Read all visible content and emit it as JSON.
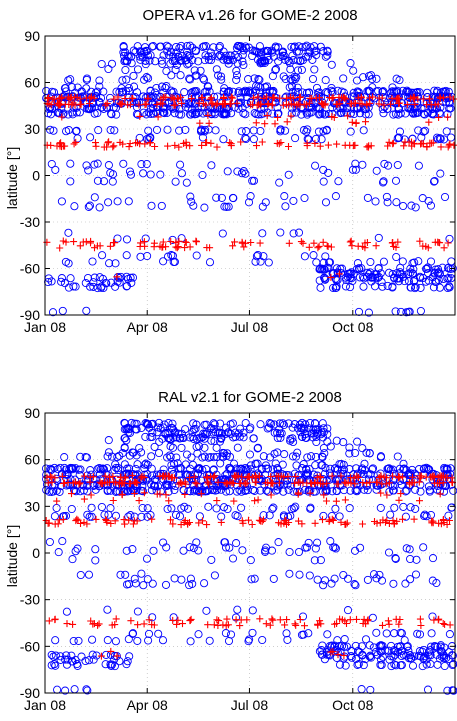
{
  "figure": {
    "background": "#ffffff",
    "circle_color": "#0000ff",
    "cross_color": "#ff0000"
  },
  "chart_data": [
    {
      "type": "scatter",
      "title": "OPERA v1.26 for GOME-2 2008",
      "xlabel": "",
      "ylabel": "latitude [°]",
      "xlim": [
        "2008-01-01",
        "2008-12-31"
      ],
      "ylim": [
        -90,
        90
      ],
      "x_tick_labels": [
        "Jan 08",
        "Apr 08",
        "Jul 08",
        "Oct 08"
      ],
      "x_ticks": [
        "2008-01-01",
        "2008-04-01",
        "2008-07-01",
        "2008-10-01"
      ],
      "y_ticks": [
        90,
        60,
        30,
        0,
        -30,
        -60,
        -90
      ],
      "grid": true,
      "series": [
        {
          "marker": "circle",
          "color": "#0000ff",
          "bands": [
            {
              "lat_range": [
                74,
                83
              ],
              "dates": [
                "2008-03-10",
                "2008-09-10"
              ],
              "density": 0.85
            },
            {
              "lat_range": [
                64,
                72
              ],
              "dates": [
                "2008-02-20",
                "2008-10-20"
              ],
              "density": 0.45
            },
            {
              "lat_range": [
                57,
                62
              ],
              "dates": [
                "2008-01-15",
                "2008-11-20"
              ],
              "density": 0.55
            },
            {
              "lat_range": [
                40,
                54
              ],
              "dates": [
                "2008-01-01",
                "2008-12-31"
              ],
              "density": 1.0
            },
            {
              "lat_range": [
                24,
                29
              ],
              "dates": [
                "2008-01-01",
                "2008-12-31"
              ],
              "density": 0.55
            },
            {
              "lat_range": [
                3,
                7
              ],
              "dates": [
                "2008-01-01",
                "2008-12-31"
              ],
              "density": 0.3
            },
            {
              "lat_range": [
                -4,
                1
              ],
              "dates": [
                "2008-01-01",
                "2008-12-31"
              ],
              "density": 0.3
            },
            {
              "lat_range": [
                -20,
                -14
              ],
              "dates": [
                "2008-01-15",
                "2008-12-31"
              ],
              "density": 0.35
            },
            {
              "lat_range": [
                -41,
                -37
              ],
              "dates": [
                "2008-01-20",
                "2008-12-31"
              ],
              "density": 0.22
            },
            {
              "lat_range": [
                -56,
                -52
              ],
              "dates": [
                "2008-01-01",
                "2008-12-31"
              ],
              "density": 0.4
            },
            {
              "lat_range": [
                -66,
                -60
              ],
              "dates": [
                "2008-09-01",
                "2008-12-31"
              ],
              "density": 0.9
            },
            {
              "lat_range": [
                -72,
                -66
              ],
              "dates": [
                "2008-01-01",
                "2008-03-20"
              ],
              "density": 0.7
            },
            {
              "lat_range": [
                -72,
                -68
              ],
              "dates": [
                "2008-09-01",
                "2008-12-31"
              ],
              "density": 0.7
            },
            {
              "lat_range": [
                -90,
                -88
              ],
              "dates": [
                "2008-01-05",
                "2008-02-10"
              ],
              "density": 0.4
            },
            {
              "lat_range": [
                -90,
                -88
              ],
              "dates": [
                "2008-10-05",
                "2008-12-31"
              ],
              "density": 0.4
            }
          ]
        },
        {
          "marker": "plus",
          "color": "#ff0000",
          "bands": [
            {
              "lat_range": [
                46,
                50
              ],
              "dates": [
                "2008-01-01",
                "2008-12-31"
              ],
              "density": 0.9
            },
            {
              "lat_range": [
                34,
                38
              ],
              "dates": [
                "2008-01-01",
                "2008-12-31"
              ],
              "density": 0.3
            },
            {
              "lat_range": [
                19,
                21
              ],
              "dates": [
                "2008-01-01",
                "2008-12-31"
              ],
              "density": 0.6
            },
            {
              "lat_range": [
                -46,
                -43
              ],
              "dates": [
                "2008-01-01",
                "2008-12-31"
              ],
              "density": 0.55
            },
            {
              "lat_range": [
                -66,
                -63
              ],
              "dates": [
                "2008-02-20",
                "2008-03-15"
              ],
              "density": 0.3
            },
            {
              "lat_range": [
                -66,
                -63
              ],
              "dates": [
                "2008-09-10",
                "2008-10-15"
              ],
              "density": 0.4
            }
          ]
        }
      ]
    },
    {
      "type": "scatter",
      "title": "RAL v2.1 for GOME-2 2008",
      "xlabel": "",
      "ylabel": "latitude [°]",
      "xlim": [
        "2008-01-01",
        "2008-12-31"
      ],
      "ylim": [
        -90,
        90
      ],
      "x_tick_labels": [
        "Jan 08",
        "Apr 08",
        "Jul 08",
        "Oct 08"
      ],
      "x_ticks": [
        "2008-01-01",
        "2008-04-01",
        "2008-07-01",
        "2008-10-01"
      ],
      "y_ticks": [
        90,
        60,
        30,
        0,
        -30,
        -60,
        -90
      ],
      "grid": true,
      "series": [
        {
          "marker": "circle",
          "color": "#0000ff",
          "bands": [
            {
              "lat_range": [
                74,
                83
              ],
              "dates": [
                "2008-03-10",
                "2008-09-10"
              ],
              "density": 0.85
            },
            {
              "lat_range": [
                64,
                72
              ],
              "dates": [
                "2008-02-20",
                "2008-10-20"
              ],
              "density": 0.45
            },
            {
              "lat_range": [
                57,
                62
              ],
              "dates": [
                "2008-01-15",
                "2008-11-20"
              ],
              "density": 0.55
            },
            {
              "lat_range": [
                40,
                54
              ],
              "dates": [
                "2008-01-01",
                "2008-12-31"
              ],
              "density": 1.0
            },
            {
              "lat_range": [
                24,
                29
              ],
              "dates": [
                "2008-01-01",
                "2008-12-31"
              ],
              "density": 0.55
            },
            {
              "lat_range": [
                3,
                7
              ],
              "dates": [
                "2008-01-01",
                "2008-12-31"
              ],
              "density": 0.3
            },
            {
              "lat_range": [
                -4,
                1
              ],
              "dates": [
                "2008-01-01",
                "2008-12-31"
              ],
              "density": 0.3
            },
            {
              "lat_range": [
                -20,
                -14
              ],
              "dates": [
                "2008-01-15",
                "2008-12-31"
              ],
              "density": 0.35
            },
            {
              "lat_range": [
                -41,
                -37
              ],
              "dates": [
                "2008-01-20",
                "2008-12-31"
              ],
              "density": 0.22
            },
            {
              "lat_range": [
                -56,
                -52
              ],
              "dates": [
                "2008-01-01",
                "2008-12-31"
              ],
              "density": 0.4
            },
            {
              "lat_range": [
                -66,
                -60
              ],
              "dates": [
                "2008-09-01",
                "2008-12-31"
              ],
              "density": 0.9
            },
            {
              "lat_range": [
                -72,
                -66
              ],
              "dates": [
                "2008-01-01",
                "2008-03-20"
              ],
              "density": 0.7
            },
            {
              "lat_range": [
                -72,
                -68
              ],
              "dates": [
                "2008-09-01",
                "2008-12-31"
              ],
              "density": 0.7
            },
            {
              "lat_range": [
                -90,
                -88
              ],
              "dates": [
                "2008-01-05",
                "2008-02-10"
              ],
              "density": 0.4
            },
            {
              "lat_range": [
                -90,
                -88
              ],
              "dates": [
                "2008-10-05",
                "2008-12-31"
              ],
              "density": 0.4
            }
          ]
        },
        {
          "marker": "plus",
          "color": "#ff0000",
          "bands": [
            {
              "lat_range": [
                45,
                49
              ],
              "dates": [
                "2008-01-01",
                "2008-12-31"
              ],
              "density": 0.9
            },
            {
              "lat_range": [
                34,
                38
              ],
              "dates": [
                "2008-01-01",
                "2008-12-31"
              ],
              "density": 0.35
            },
            {
              "lat_range": [
                19,
                21
              ],
              "dates": [
                "2008-01-01",
                "2008-12-31"
              ],
              "density": 0.6
            },
            {
              "lat_range": [
                -46,
                -43
              ],
              "dates": [
                "2008-01-01",
                "2008-12-31"
              ],
              "density": 0.55
            },
            {
              "lat_range": [
                -66,
                -63
              ],
              "dates": [
                "2008-02-20",
                "2008-03-15"
              ],
              "density": 0.3
            },
            {
              "lat_range": [
                -66,
                -63
              ],
              "dates": [
                "2008-09-10",
                "2008-10-15"
              ],
              "density": 0.4
            }
          ]
        }
      ]
    }
  ]
}
